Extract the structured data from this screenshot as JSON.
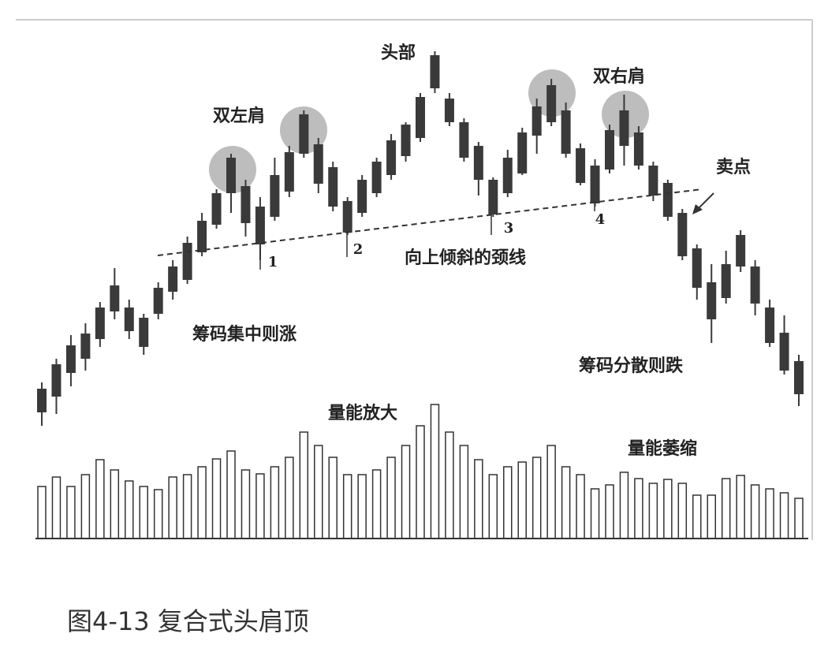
{
  "chart_data": {
    "type": "candlestick",
    "caption": "图4-13 复合式头肩顶",
    "annotations": [
      "双左肩",
      "头部",
      "双右肩",
      "卖点",
      "向上倾斜的颈线",
      "筹码集中则涨",
      "筹码分散则跌",
      "量能放大",
      "量能萎缩",
      "1",
      "2",
      "3",
      "4"
    ],
    "color": "#3a3a3a",
    "volume_color": "#333333",
    "open": [
      77,
      97,
      127,
      145,
      170,
      205,
      180,
      160,
      202,
      230,
      245,
      280,
      315,
      355,
      317,
      290,
      325,
      357,
      405,
      367,
      338,
      305,
      330,
      355,
      378,
      402,
      425,
      488,
      445,
      400,
      372,
      328,
      355,
      380,
      428,
      445,
      405,
      368,
      342,
      385,
      415,
      390,
      352,
      325,
      275,
      235,
      195,
      222,
      262,
      215,
      165,
      130,
      100
    ],
    "close": [
      107,
      138,
      162,
      177,
      210,
      238,
      210,
      197,
      235,
      262,
      292,
      320,
      355,
      400,
      364,
      338,
      378,
      407,
      455,
      417,
      388,
      345,
      372,
      395,
      422,
      442,
      477,
      530,
      475,
      445,
      415,
      372,
      400,
      432,
      465,
      492,
      460,
      412,
      390,
      435,
      460,
      432,
      390,
      368,
      330,
      285,
      242,
      265,
      302,
      262,
      210,
      178,
      142
    ],
    "high": [
      115,
      145,
      175,
      190,
      217,
      260,
      220,
      202,
      242,
      270,
      300,
      330,
      360,
      405,
      372,
      350,
      400,
      415,
      460,
      425,
      395,
      350,
      378,
      400,
      430,
      445,
      482,
      535,
      482,
      450,
      420,
      375,
      410,
      438,
      475,
      500,
      470,
      418,
      398,
      442,
      480,
      440,
      395,
      372,
      335,
      290,
      265,
      282,
      308,
      270,
      220,
      200,
      150
    ],
    "low": [
      60,
      75,
      110,
      130,
      160,
      195,
      170,
      150,
      195,
      220,
      240,
      275,
      310,
      330,
      300,
      270,
      320,
      350,
      400,
      355,
      332,
      302,
      325,
      350,
      372,
      395,
      420,
      482,
      440,
      395,
      352,
      325,
      350,
      378,
      405,
      440,
      400,
      365,
      338,
      380,
      390,
      385,
      345,
      320,
      270,
      220,
      165,
      215,
      255,
      200,
      160,
      125,
      85
    ],
    "volume": [
      66,
      78,
      66,
      81,
      100,
      87,
      73,
      66,
      62,
      78,
      81,
      91,
      101,
      111,
      87,
      82,
      91,
      103,
      135,
      118,
      103,
      81,
      81,
      87,
      103,
      118,
      143,
      170,
      135,
      118,
      100,
      81,
      91,
      97,
      103,
      118,
      91,
      81,
      63,
      68,
      84,
      76,
      70,
      75,
      70,
      55,
      55,
      76,
      80,
      68,
      63,
      58,
      51
    ]
  }
}
